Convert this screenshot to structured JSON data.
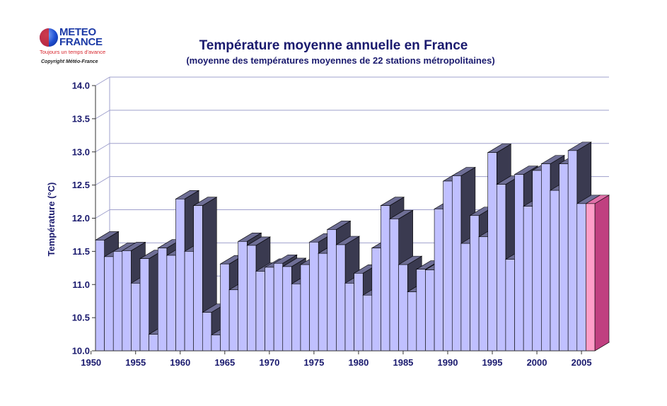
{
  "logo": {
    "line1": "METEO",
    "line2": "FRANCE",
    "tagline": "Toujours un temps d'avance",
    "copyright": "Copyright Météo-France"
  },
  "colors": {
    "bar_fill": "#c0c0ff",
    "bar_side": "#3a3a50",
    "bar_top": "#6e6e95",
    "highlight_fill": "#ff9ec8",
    "gridline": "#9fa0cc",
    "text": "#1a1a6e"
  },
  "chart_data": {
    "type": "bar",
    "title": "Température moyenne annuelle en France",
    "subtitle": "(moyenne des températures moyennes de 22 stations métropolitaines)",
    "ylabel": "Température (°C)",
    "xlabel": "",
    "ylim": [
      10.0,
      14.0
    ],
    "yticks": [
      "10.0",
      "10.5",
      "11.0",
      "11.5",
      "12.0",
      "12.5",
      "13.0",
      "13.5",
      "14.0"
    ],
    "xticks": [
      "1950",
      "1955",
      "1960",
      "1965",
      "1970",
      "1975",
      "1980",
      "1985",
      "1990",
      "1995",
      "2000",
      "2005"
    ],
    "grid": true,
    "highlight_year": 2006,
    "categories": [
      1951,
      1952,
      1953,
      1954,
      1955,
      1956,
      1957,
      1958,
      1959,
      1960,
      1961,
      1962,
      1963,
      1964,
      1965,
      1966,
      1967,
      1968,
      1969,
      1970,
      1971,
      1972,
      1973,
      1974,
      1975,
      1976,
      1977,
      1978,
      1979,
      1980,
      1981,
      1982,
      1983,
      1984,
      1985,
      1986,
      1987,
      1988,
      1989,
      1990,
      1991,
      1992,
      1993,
      1994,
      1995,
      1996,
      1997,
      1998,
      1999,
      2000,
      2001,
      2002,
      2003,
      2004,
      2005,
      2006
    ],
    "values": [
      11.67,
      11.42,
      11.5,
      11.51,
      11.02,
      11.39,
      10.25,
      11.55,
      11.44,
      12.29,
      11.5,
      12.19,
      10.58,
      10.24,
      11.31,
      10.92,
      11.65,
      11.59,
      11.2,
      11.26,
      11.32,
      11.27,
      11.01,
      11.3,
      11.64,
      11.47,
      11.83,
      11.6,
      11.02,
      11.17,
      10.84,
      11.55,
      12.19,
      11.99,
      11.3,
      10.89,
      11.23,
      11.22,
      12.14,
      12.56,
      12.64,
      11.62,
      12.04,
      11.72,
      12.99,
      12.51,
      11.38,
      12.66,
      12.18,
      12.72,
      12.82,
      12.42,
      12.82,
      13.02,
      12.22,
      12.22
    ]
  }
}
